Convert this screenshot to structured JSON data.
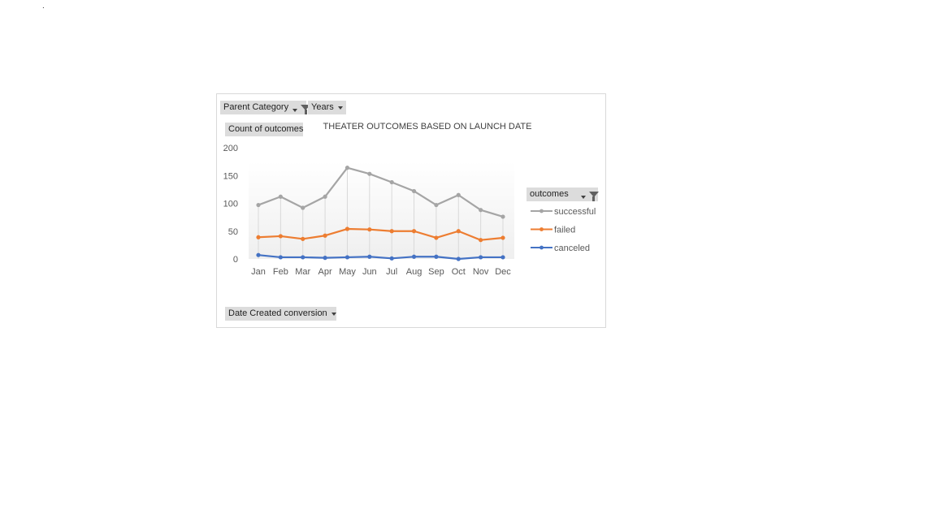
{
  "page": {
    "dot": "."
  },
  "filters": {
    "parent_category": "Parent Category",
    "years": "Years",
    "value_field": "Count of outcomes",
    "axis_field": "Date Created conversion",
    "legend_field": "outcomes"
  },
  "chart_data": {
    "type": "line",
    "title": "THEATER OUTCOMES  BASED ON LAUNCH DATE",
    "xlabel": "",
    "ylabel": "",
    "categories": [
      "Jan",
      "Feb",
      "Mar",
      "Apr",
      "May",
      "Jun",
      "Jul",
      "Aug",
      "Sep",
      "Oct",
      "Nov",
      "Dec"
    ],
    "ylim": [
      0,
      200
    ],
    "yticks": [
      0,
      50,
      100,
      150,
      200
    ],
    "series": [
      {
        "name": "successful",
        "color": "#a5a5a5",
        "values": [
          97,
          112,
          92,
          112,
          164,
          153,
          138,
          122,
          97,
          115,
          88,
          76
        ]
      },
      {
        "name": "failed",
        "color": "#ed7d31",
        "values": [
          39,
          41,
          36,
          42,
          54,
          53,
          50,
          50,
          38,
          50,
          34,
          38
        ]
      },
      {
        "name": "canceled",
        "color": "#4472c4",
        "values": [
          7,
          3,
          3,
          2,
          3,
          4,
          1,
          4,
          4,
          0,
          3,
          3
        ]
      }
    ],
    "grid": "vertical lines",
    "legend_position": "right"
  }
}
